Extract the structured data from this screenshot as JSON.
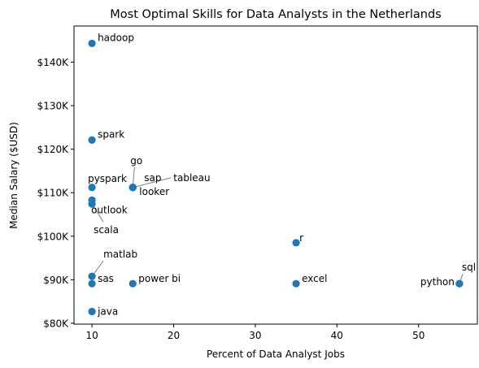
{
  "chart_data": {
    "type": "scatter",
    "title": "Most Optimal Skills for Data Analysts in the Netherlands",
    "xlabel": "Percent of Data Analyst Jobs",
    "ylabel": "Median Salary ($USD)",
    "xlim": [
      7.8,
      57.2
    ],
    "ylim": [
      79800,
      148300
    ],
    "x_ticks": [
      10,
      20,
      30,
      40,
      50
    ],
    "x_tick_labels": [
      "10",
      "20",
      "30",
      "40",
      "50"
    ],
    "y_ticks": [
      80000,
      90000,
      100000,
      110000,
      120000,
      130000,
      140000
    ],
    "y_tick_labels": [
      "$80K",
      "$90K",
      "$100K",
      "$110K",
      "$120K",
      "$130K",
      "$140K"
    ],
    "grid": false,
    "marker_color": "#1f77b4",
    "points": [
      {
        "label": "hadoop",
        "x": 10,
        "y": 144300
      },
      {
        "label": "spark",
        "x": 10,
        "y": 122100
      },
      {
        "label": "pyspark",
        "x": 10,
        "y": 111200
      },
      {
        "label": "outlook",
        "x": 10,
        "y": 108300
      },
      {
        "label": "scala",
        "x": 10,
        "y": 107400
      },
      {
        "label": "matlab",
        "x": 10,
        "y": 90800
      },
      {
        "label": "sas",
        "x": 10,
        "y": 89100
      },
      {
        "label": "java",
        "x": 10,
        "y": 82700
      },
      {
        "label": "go",
        "x": 15,
        "y": 111200
      },
      {
        "label": "sap",
        "x": 15,
        "y": 111200
      },
      {
        "label": "tableau",
        "x": 15,
        "y": 111200
      },
      {
        "label": "looker",
        "x": 15,
        "y": 111200
      },
      {
        "label": "power bi",
        "x": 15,
        "y": 89100
      },
      {
        "label": "r",
        "x": 35,
        "y": 98500
      },
      {
        "label": "excel",
        "x": 35,
        "y": 89100
      },
      {
        "label": "sql",
        "x": 55,
        "y": 89100
      },
      {
        "label": "python",
        "x": 55,
        "y": 89100
      }
    ]
  }
}
